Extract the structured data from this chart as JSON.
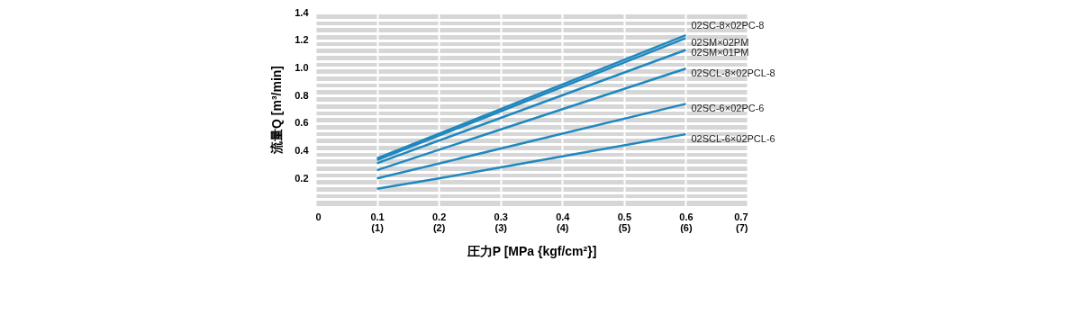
{
  "chart_data": {
    "type": "line",
    "xlabel": "圧力P [MPa {kgf/cm²}]",
    "ylabel": "流量Q [m³/min]",
    "x": [
      0.1,
      0.6
    ],
    "series": [
      {
        "name": "02SC-8×02PC-8",
        "color": "#1f88bf",
        "values": [
          0.345,
          1.236
        ]
      },
      {
        "name": "02SM×02PM",
        "color": "#1f88bf",
        "values": [
          0.333,
          1.215
        ]
      },
      {
        "name": "02SM×01PM",
        "color": "#1f88bf",
        "values": [
          0.31,
          1.13
        ]
      },
      {
        "name": "02SCL-8×02PCL-8",
        "color": "#1f88bf",
        "values": [
          0.26,
          0.995
        ]
      },
      {
        "name": "02SC-6×02PC-6",
        "color": "#1f88bf",
        "values": [
          0.2,
          0.74
        ]
      },
      {
        "name": "02SCL-6×02PCL-6",
        "color": "#1f88bf",
        "x": [
          0.1,
          0.2,
          0.3,
          0.4,
          0.5,
          0.6
        ],
        "values": [
          0.125,
          0.2,
          0.28,
          0.36,
          0.44,
          0.52
        ]
      }
    ],
    "xlim": [
      0,
      0.7
    ],
    "xticks": [
      0,
      0.1,
      0.2,
      0.3,
      0.4,
      0.5,
      0.6,
      0.7
    ],
    "x2lim": [
      0,
      7
    ],
    "x2ticks": [
      {
        "value": 1,
        "label": "(1)"
      },
      {
        "value": 2,
        "label": "(2)"
      },
      {
        "value": 3,
        "label": "(3)"
      },
      {
        "value": 4,
        "label": "(4)"
      },
      {
        "value": 5,
        "label": "(5)"
      },
      {
        "value": 6,
        "label": "(6)"
      },
      {
        "value": 7,
        "label": "(7)"
      }
    ],
    "ylim": [
      0,
      1.4
    ],
    "yticks": [
      {
        "value": 0.05,
        "label": null
      },
      {
        "value": 0.1,
        "label": null
      },
      {
        "value": 0.15,
        "label": null
      },
      0.2,
      {
        "value": 0.25,
        "label": null
      },
      {
        "value": 0.3,
        "label": null
      },
      {
        "value": 0.35,
        "label": null
      },
      0.4,
      {
        "value": 0.45,
        "label": null
      },
      {
        "value": 0.5,
        "label": null
      },
      {
        "value": 0.55,
        "label": null
      },
      0.6,
      {
        "value": 0.65,
        "label": null
      },
      {
        "value": 0.7,
        "label": null
      },
      {
        "value": 0.75,
        "label": null
      },
      0.8,
      {
        "value": 0.85,
        "label": null
      },
      {
        "value": 0.9,
        "label": null
      },
      {
        "value": 0.95,
        "label": null
      },
      {
        "value": 1.0,
        "label": "1.0"
      },
      {
        "value": 1.05,
        "label": null
      },
      {
        "value": 1.1,
        "label": null
      },
      {
        "value": 1.15,
        "label": null
      },
      1.2,
      {
        "value": 1.25,
        "label": null
      },
      {
        "value": 1.3,
        "label": null
      },
      {
        "value": 1.35,
        "label": null
      },
      1.4
    ],
    "grid": true,
    "line_style": "solid",
    "marker": "none",
    "legend": false
  }
}
